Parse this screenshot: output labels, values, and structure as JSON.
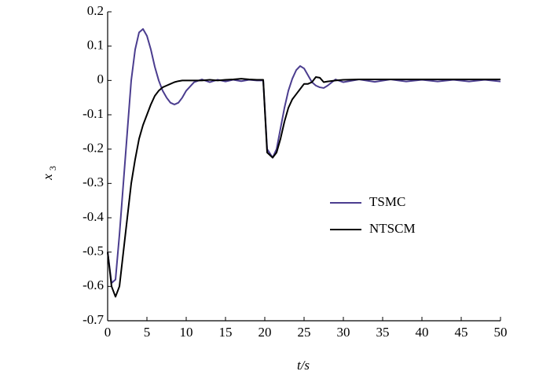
{
  "chart_data": {
    "type": "line",
    "xlabel": "t/s",
    "ylabel": "x",
    "ylabel_subscript": "3",
    "xlim": [
      0,
      50
    ],
    "ylim": [
      -0.7,
      0.2
    ],
    "xticks": [
      0,
      5,
      10,
      15,
      20,
      25,
      30,
      35,
      40,
      45,
      50
    ],
    "yticks": [
      0.2,
      0.1,
      0,
      -0.1,
      -0.2,
      -0.3,
      -0.4,
      -0.5,
      -0.6,
      -0.7
    ],
    "legend": "center-right",
    "x": [
      0,
      0.5,
      1,
      1.5,
      2,
      2.5,
      3,
      3.5,
      4,
      4.5,
      5,
      5.5,
      6,
      6.5,
      7,
      7.5,
      8,
      8.5,
      9,
      9.5,
      10,
      11,
      12,
      13,
      14,
      15,
      16,
      17,
      18,
      19,
      19.8,
      20.3,
      21,
      21.5,
      22,
      22.5,
      23,
      23.5,
      24,
      24.5,
      25,
      25.5,
      26,
      26.5,
      27,
      27.5,
      28,
      29,
      30,
      32,
      34,
      36,
      38,
      40,
      42,
      44,
      46,
      48,
      50
    ],
    "series": [
      {
        "name": "TSMC",
        "color": "#4b3d8f",
        "values": [
          -0.5,
          -0.59,
          -0.58,
          -0.45,
          -0.3,
          -0.15,
          0,
          0.09,
          0.14,
          0.15,
          0.13,
          0.09,
          0.04,
          0,
          -0.03,
          -0.05,
          -0.065,
          -0.07,
          -0.065,
          -0.05,
          -0.03,
          -0.005,
          0.003,
          -0.005,
          0.002,
          -0.003,
          0.002,
          -0.002,
          0.002,
          0,
          0,
          -0.2,
          -0.225,
          -0.2,
          -0.14,
          -0.08,
          -0.03,
          0.005,
          0.03,
          0.042,
          0.035,
          0.015,
          -0.005,
          -0.015,
          -0.02,
          -0.022,
          -0.015,
          0.003,
          -0.005,
          0.003,
          -0.004,
          0.003,
          -0.003,
          0.002,
          -0.003,
          0.002,
          -0.003,
          0.002,
          -0.003
        ]
      },
      {
        "name": "NTSCM",
        "color": "#000000",
        "values": [
          -0.5,
          -0.6,
          -0.63,
          -0.6,
          -0.5,
          -0.4,
          -0.3,
          -0.23,
          -0.17,
          -0.13,
          -0.1,
          -0.07,
          -0.045,
          -0.03,
          -0.02,
          -0.015,
          -0.01,
          -0.005,
          -0.002,
          0,
          0,
          0,
          0,
          0.002,
          0,
          0.002,
          0.003,
          0.005,
          0.003,
          0.002,
          0.002,
          -0.21,
          -0.225,
          -0.21,
          -0.17,
          -0.12,
          -0.08,
          -0.055,
          -0.04,
          -0.025,
          -0.01,
          -0.01,
          -0.005,
          0.01,
          0.008,
          -0.005,
          -0.003,
          0,
          0.002,
          0.003,
          0.003,
          0.003,
          0.003,
          0.003,
          0.003,
          0.003,
          0.003,
          0.003,
          0.003
        ]
      }
    ]
  }
}
